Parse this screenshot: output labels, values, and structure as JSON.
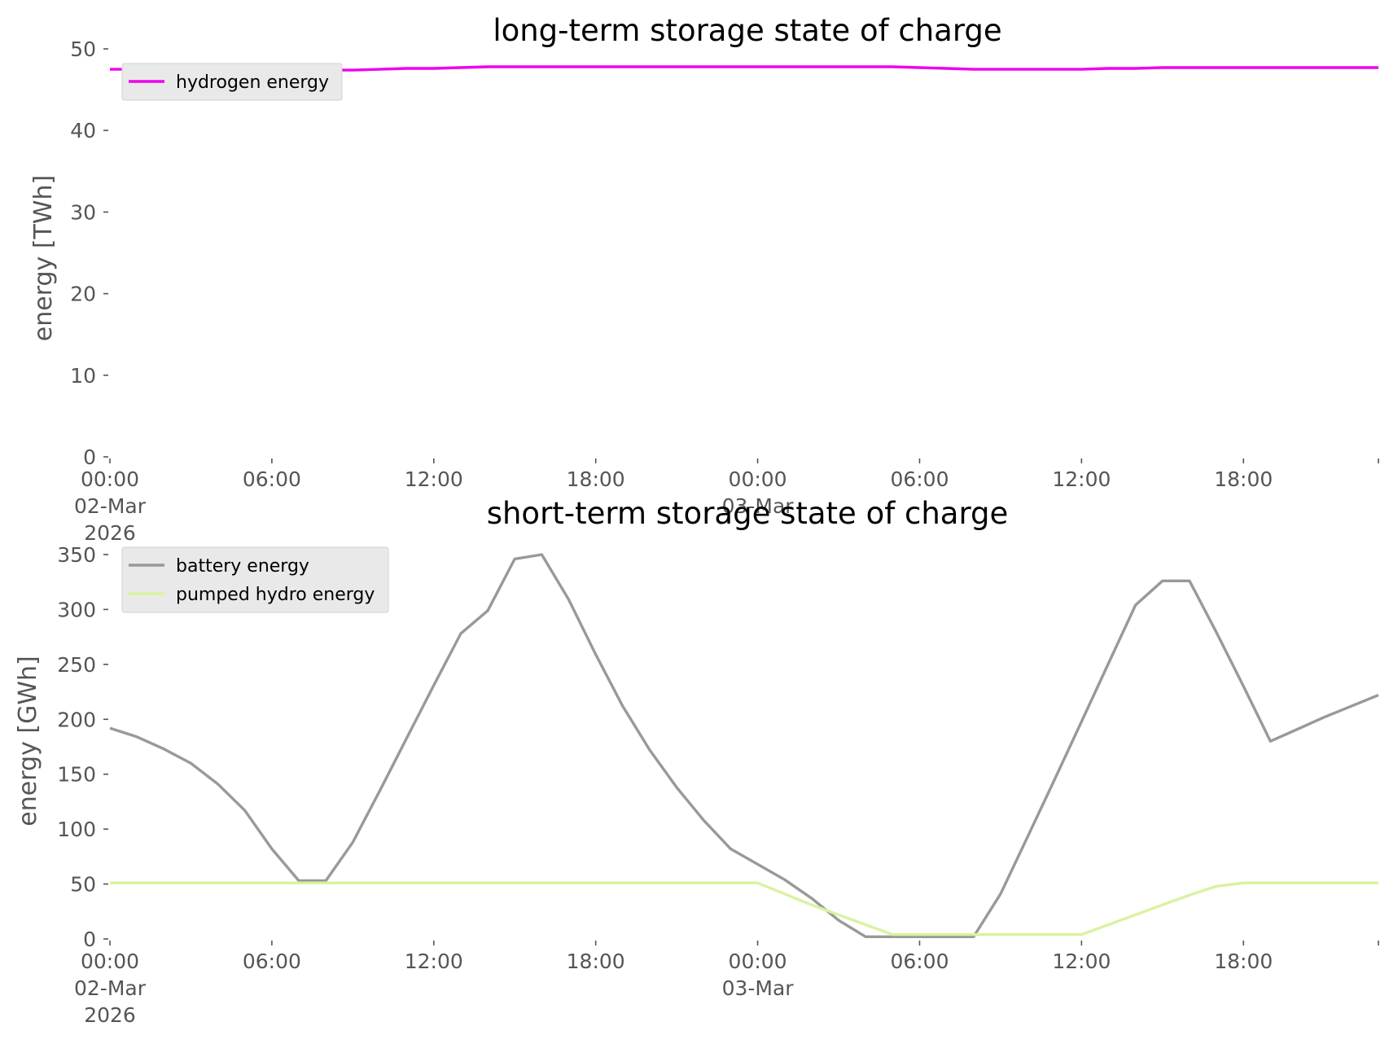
{
  "chart_data": [
    {
      "type": "line",
      "title": "long-term storage state of charge",
      "xlabel": "",
      "ylabel": "energy [TWh]",
      "ylim": [
        0,
        50
      ],
      "yticks": [
        0,
        10,
        20,
        30,
        40,
        50
      ],
      "ytick_labels": [
        "0",
        "10",
        "20",
        "30",
        "40",
        "50"
      ],
      "x_start": "2026-03-02 00:00",
      "x_end": "2026-03-03 23:00",
      "x_step": "1h",
      "xticks": [
        {
          "x": "2026-03-02 00:00",
          "label": "00:00\n02-Mar\n2026"
        },
        {
          "x": "2026-03-02 06:00",
          "label": "06:00"
        },
        {
          "x": "2026-03-02 12:00",
          "label": "12:00"
        },
        {
          "x": "2026-03-02 18:00",
          "label": "18:00"
        },
        {
          "x": "2026-03-03 00:00",
          "label": "00:00\n03-Mar"
        },
        {
          "x": "2026-03-03 06:00",
          "label": "06:00"
        },
        {
          "x": "2026-03-03 12:00",
          "label": "12:00"
        },
        {
          "x": "2026-03-03 18:00",
          "label": "18:00"
        },
        {
          "x": "2026-03-03 23:00",
          "label": ""
        }
      ],
      "legend": "top-left",
      "grid": false,
      "series": [
        {
          "name": "hydrogen energy",
          "color": "#ee00ee",
          "values": [
            47.5,
            47.5,
            47.5,
            47.5,
            47.5,
            47.5,
            47.4,
            47.4,
            47.4,
            47.4,
            47.5,
            47.6,
            47.6,
            47.7,
            47.8,
            47.8,
            47.8,
            47.8,
            47.8,
            47.8,
            47.8,
            47.8,
            47.8,
            47.8,
            47.8,
            47.8,
            47.8,
            47.8,
            47.8,
            47.8,
            47.7,
            47.6,
            47.5,
            47.5,
            47.5,
            47.5,
            47.5,
            47.6,
            47.6,
            47.7,
            47.7,
            47.7,
            47.7,
            47.7,
            47.7,
            47.7,
            47.7,
            47.7
          ]
        }
      ]
    },
    {
      "type": "line",
      "title": "short-term storage state of charge",
      "xlabel": "",
      "ylabel": "energy [GWh]",
      "ylim": [
        0,
        370
      ],
      "yticks": [
        0,
        50,
        100,
        150,
        200,
        250,
        300,
        350
      ],
      "ytick_labels": [
        "0",
        "50",
        "100",
        "150",
        "200",
        "250",
        "300",
        "350"
      ],
      "x_start": "2026-03-02 00:00",
      "x_end": "2026-03-03 23:00",
      "x_step": "1h",
      "xticks": [
        {
          "x": "2026-03-02 00:00",
          "label": "00:00\n02-Mar\n2026"
        },
        {
          "x": "2026-03-02 06:00",
          "label": "06:00"
        },
        {
          "x": "2026-03-02 12:00",
          "label": "12:00"
        },
        {
          "x": "2026-03-02 18:00",
          "label": "18:00"
        },
        {
          "x": "2026-03-03 00:00",
          "label": "00:00\n03-Mar"
        },
        {
          "x": "2026-03-03 06:00",
          "label": "06:00"
        },
        {
          "x": "2026-03-03 12:00",
          "label": "12:00"
        },
        {
          "x": "2026-03-03 18:00",
          "label": "18:00"
        },
        {
          "x": "2026-03-03 23:00",
          "label": ""
        }
      ],
      "legend": "top-left",
      "grid": false,
      "series": [
        {
          "name": "battery energy",
          "color": "#999999",
          "values": [
            192,
            184,
            173,
            160,
            141,
            117,
            82,
            53,
            53,
            88,
            135,
            183,
            231,
            278,
            299,
            346,
            350,
            309,
            259,
            212,
            172,
            138,
            108,
            82,
            68,
            54,
            37,
            17,
            2,
            2,
            2,
            2,
            2,
            41,
            93,
            145,
            198,
            251,
            304,
            326,
            326,
            279,
            230,
            180,
            191,
            202,
            212,
            222
          ]
        },
        {
          "name": "pumped hydro energy",
          "color": "#d9f2a0",
          "values": [
            51,
            51,
            51,
            51,
            51,
            51,
            51,
            51,
            51,
            51,
            51,
            51,
            51,
            51,
            51,
            51,
            51,
            51,
            51,
            51,
            51,
            51,
            51,
            51,
            51,
            41,
            31,
            22,
            13,
            4,
            4,
            4,
            4,
            4,
            4,
            4,
            4,
            13,
            22,
            31,
            40,
            48,
            51,
            51,
            51,
            51,
            51,
            51
          ]
        }
      ]
    }
  ]
}
